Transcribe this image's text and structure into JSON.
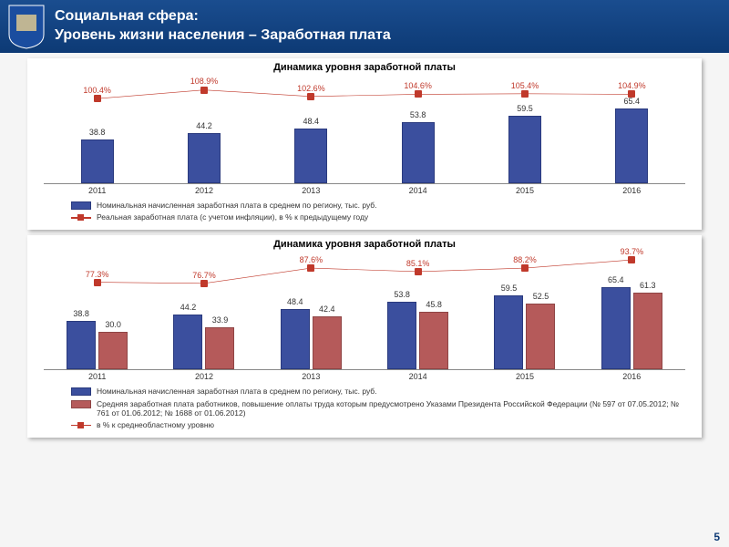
{
  "header": {
    "line1": "Социальная сфера:",
    "line2": "Уровень жизни населения – Заработная плата"
  },
  "page_number": "5",
  "chart1": {
    "title": "Динамика уровня заработной платы",
    "type": "bar+line",
    "categories": [
      "2011",
      "2012",
      "2013",
      "2014",
      "2015",
      "2016"
    ],
    "bars": {
      "values": [
        38.8,
        44.2,
        48.4,
        53.8,
        59.5,
        65.4
      ],
      "labels": [
        "38.8",
        "44.2",
        "48.4",
        "53.8",
        "59.5",
        "65.4"
      ],
      "color": "#3b4f9e",
      "border": "#2a3a7e",
      "max_scale": 80
    },
    "line": {
      "values": [
        100.4,
        108.9,
        102.6,
        104.6,
        105.4,
        104.9
      ],
      "labels": [
        "100.4%",
        "108.9%",
        "102.6%",
        "104.6%",
        "105.4%",
        "104.9%"
      ],
      "color": "#c0392b",
      "y_positions_pct": [
        22,
        14,
        20,
        18,
        17.5,
        18
      ]
    },
    "legend": [
      {
        "type": "bar-blue",
        "text": "Номинальная начисленная заработная плата в среднем по региону, тыс. руб."
      },
      {
        "type": "line-red",
        "text": "Реальная заработная плата (с учетом инфляции), в % к предыдущему году"
      }
    ]
  },
  "chart2": {
    "title": "Динамика уровня заработной платы",
    "type": "grouped-bar+line",
    "categories": [
      "2011",
      "2012",
      "2013",
      "2014",
      "2015",
      "2016"
    ],
    "bars_a": {
      "values": [
        38.8,
        44.2,
        48.4,
        53.8,
        59.5,
        65.4
      ],
      "labels": [
        "38.8",
        "44.2",
        "48.4",
        "53.8",
        "59.5",
        "65.4"
      ],
      "color": "#3b4f9e",
      "max_scale": 80
    },
    "bars_b": {
      "values": [
        30.0,
        33.9,
        42.4,
        45.8,
        52.5,
        61.3
      ],
      "labels": [
        "30.0",
        "33.9",
        "42.4",
        "45.8",
        "52.5",
        "61.3"
      ],
      "color": "#b55a5a",
      "max_scale": 80
    },
    "line": {
      "values": [
        77.3,
        76.7,
        87.6,
        85.1,
        88.2,
        93.7
      ],
      "labels": [
        "77.3%",
        "76.7%",
        "87.6%",
        "85.1%",
        "88.2%",
        "93.7%"
      ],
      "color": "#c0392b",
      "y_positions_pct": [
        26,
        27,
        14,
        17,
        14,
        7
      ]
    },
    "legend": [
      {
        "type": "bar-blue",
        "text": "Номинальная начисленная заработная плата в среднем по региону, тыс. руб."
      },
      {
        "type": "bar-red",
        "text": "Средняя заработная плата работников, повышение оплаты труда которым предусмотрено Указами Президента Российской Федерации (№ 597 от 07.05.2012; № 761 от 01.06.2012; № 1688 от 01.06.2012)"
      },
      {
        "type": "line-red",
        "text": "в % к среднеобластному уровню"
      }
    ]
  },
  "colors": {
    "header_bg_top": "#1a4d8f",
    "header_bg_bottom": "#0d3a75",
    "bar_blue": "#3b4f9e",
    "bar_red": "#b55a5a",
    "line_red": "#c0392b",
    "panel_bg": "#ffffff",
    "page_bg": "#f5f5f5"
  }
}
